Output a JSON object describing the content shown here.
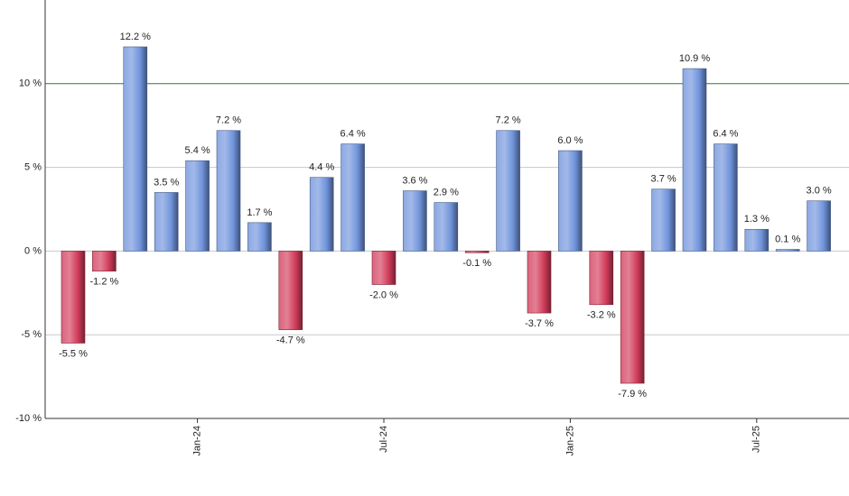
{
  "chart_data": {
    "type": "bar",
    "categories": [
      null,
      null,
      null,
      null,
      "Jan-24",
      null,
      null,
      null,
      null,
      null,
      "Jul-24",
      null,
      null,
      null,
      null,
      null,
      "Jan-25",
      null,
      null,
      null,
      null,
      null,
      "Jul-25",
      null,
      null
    ],
    "values": [
      -5.5,
      -1.2,
      12.2,
      3.5,
      5.4,
      7.2,
      1.7,
      -4.7,
      4.4,
      6.4,
      -2.0,
      3.6,
      2.9,
      -0.1,
      7.2,
      -3.7,
      6.0,
      -3.2,
      -7.9,
      3.7,
      10.9,
      6.4,
      1.3,
      0.1,
      3.0
    ],
    "value_labels": [
      "-5.5 %",
      "-1.2 %",
      "12.2 %",
      "3.5 %",
      "5.4 %",
      "7.2 %",
      "1.7 %",
      "-4.7 %",
      "4.4 %",
      "6.4 %",
      "-2.0 %",
      "3.6 %",
      "2.9 %",
      "-0.1 %",
      "7.2 %",
      "-3.7 %",
      "6.0 %",
      "-3.2 %",
      "-7.9 %",
      "3.7 %",
      "10.9 %",
      "6.4 %",
      "1.3 %",
      "0.1 %",
      "3.0 %"
    ],
    "positive_color": "#7094dc",
    "negative_color": "#d23c5a",
    "ylim": [
      -10,
      15
    ],
    "yticks": [
      {
        "value": -10,
        "label": "-10 %"
      },
      {
        "value": -5,
        "label": "-5 %"
      },
      {
        "value": 0,
        "label": "0 %"
      },
      {
        "value": 5,
        "label": "5 %"
      },
      {
        "value": 10,
        "label": "10 %"
      }
    ],
    "grid": true,
    "reference_line": 10,
    "reference_color": "#2e7d32"
  }
}
